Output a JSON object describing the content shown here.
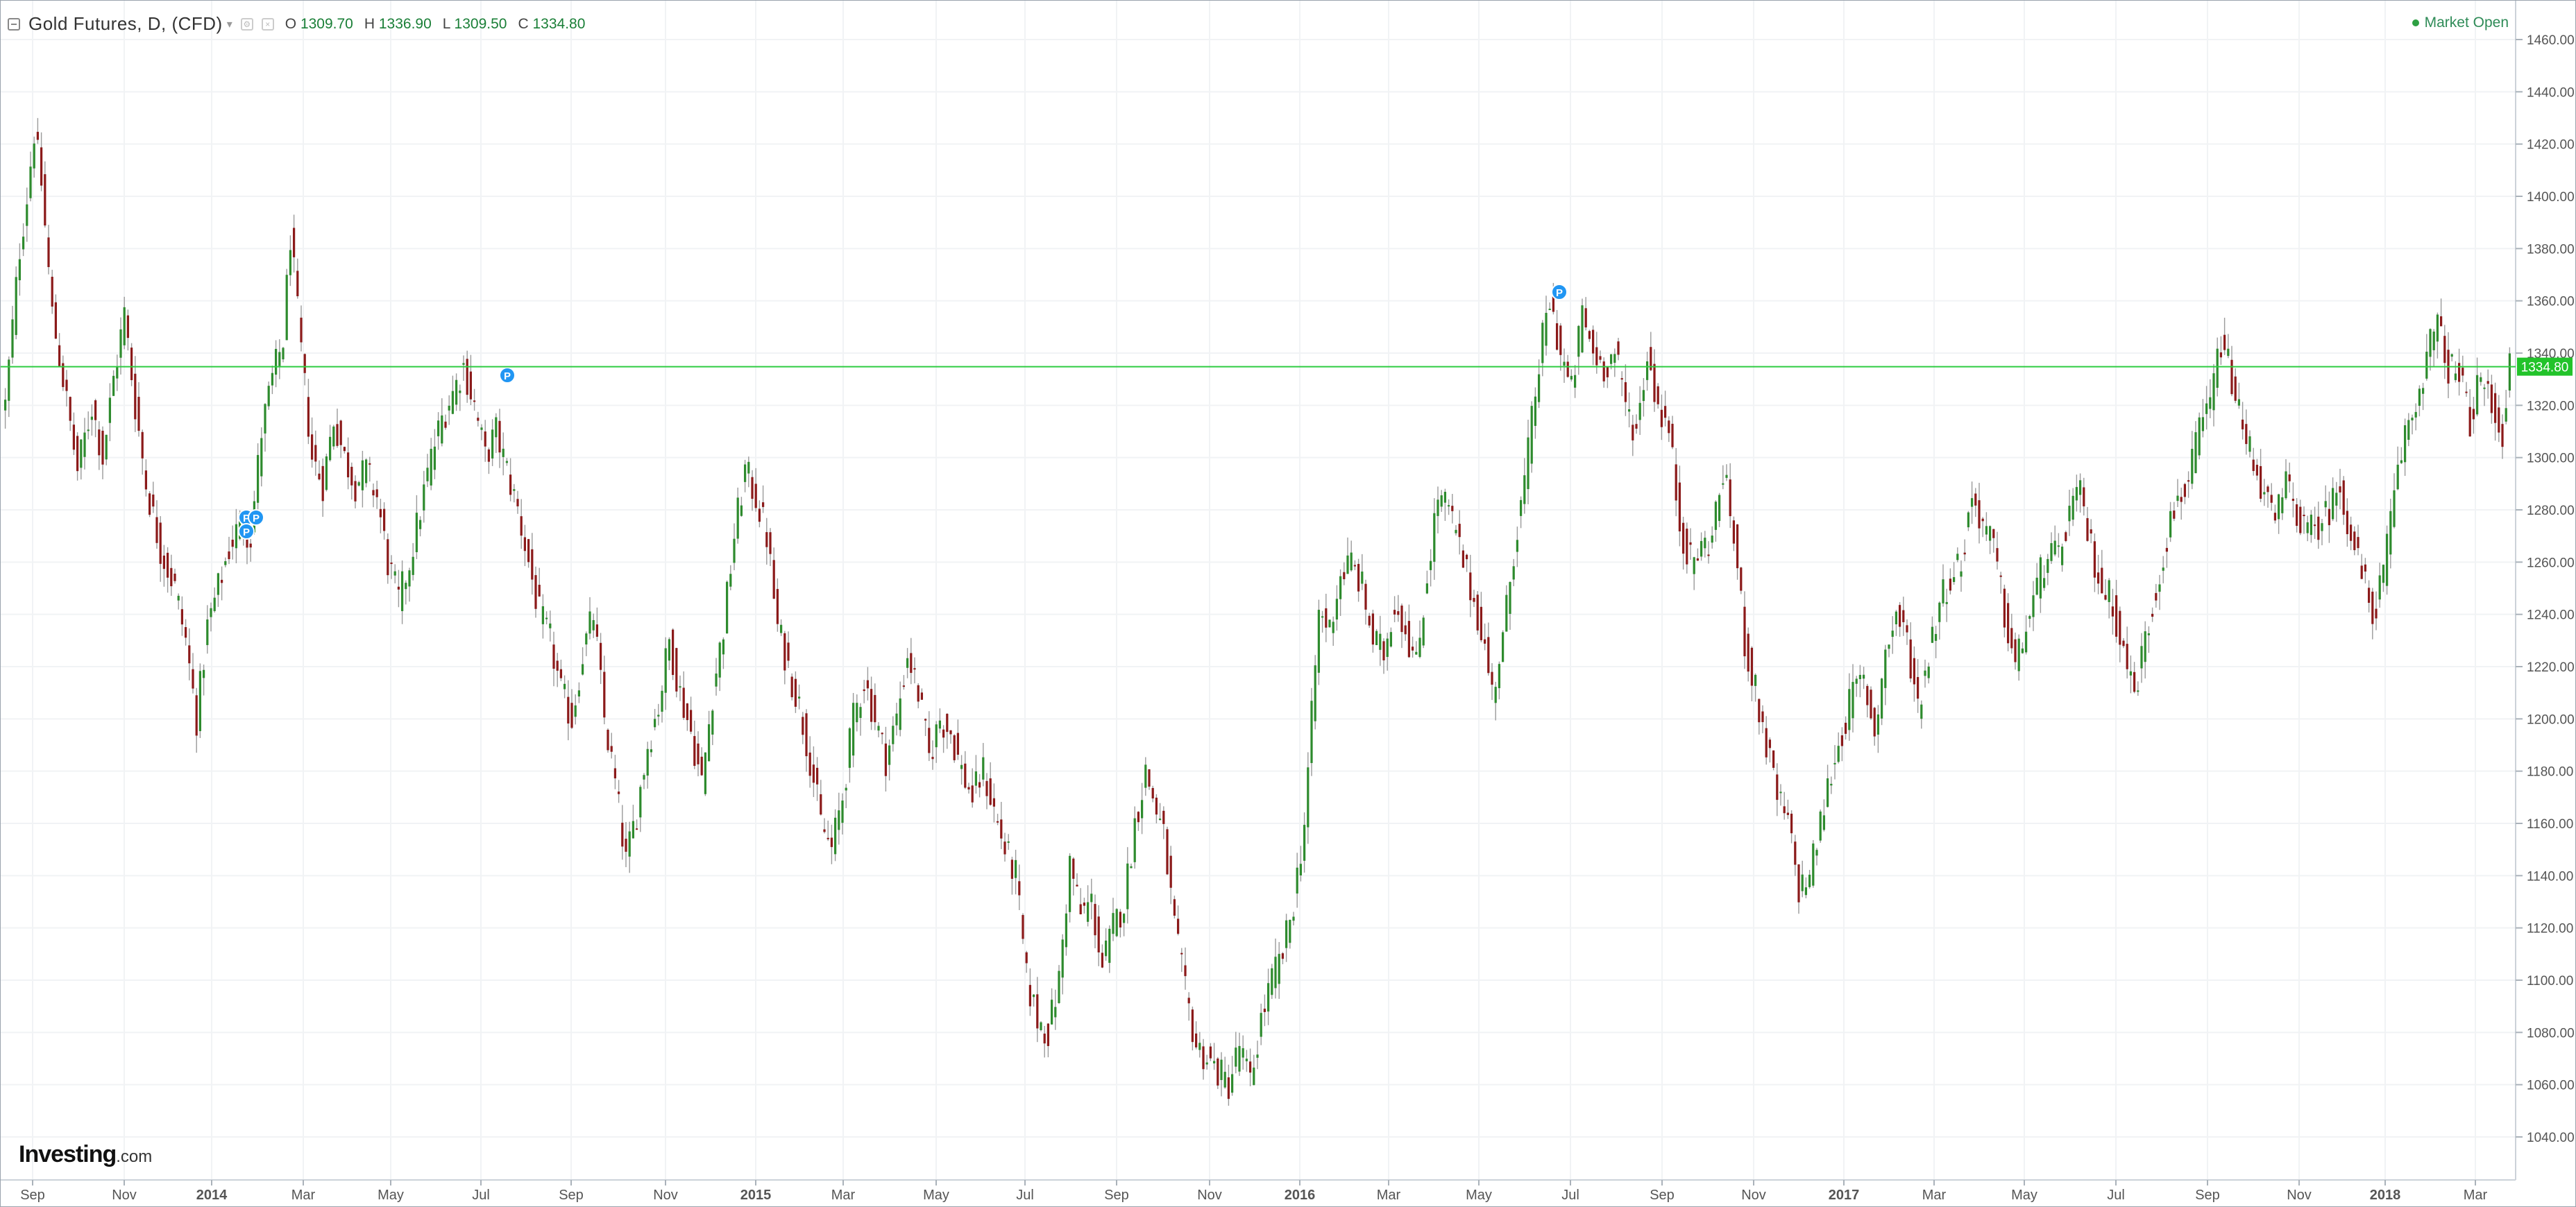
{
  "legend": {
    "symbol": "Gold Futures, D, (CFD)",
    "o_label": "O",
    "o": "1309.70",
    "h_label": "H",
    "h": "1336.90",
    "l_label": "L",
    "l": "1309.50",
    "c_label": "C",
    "c": "1334.80"
  },
  "status": {
    "market": "Market Open"
  },
  "brand": {
    "name": "Investing",
    "suffix": ".com"
  },
  "price_label": "1334.80",
  "chart_data": {
    "type": "candlestick",
    "y_ticks": [
      "1040.00",
      "1060.00",
      "1080.00",
      "1100.00",
      "1120.00",
      "1140.00",
      "1160.00",
      "1180.00",
      "1200.00",
      "1220.00",
      "1240.00",
      "1260.00",
      "1280.00",
      "1300.00",
      "1320.00",
      "1340.00",
      "1360.00",
      "1380.00",
      "1400.00",
      "1420.00",
      "1440.00",
      "1460.00"
    ],
    "x_ticks": [
      "Sep",
      "Nov",
      "2014",
      "Mar",
      "May",
      "Jul",
      "Sep",
      "Nov",
      "2015",
      "Mar",
      "May",
      "Jul",
      "Sep",
      "Nov",
      "2016",
      "Mar",
      "May",
      "Jul",
      "Sep",
      "Nov",
      "2017",
      "Mar",
      "May",
      "Jul",
      "Sep",
      "Nov",
      "2018",
      "Mar"
    ],
    "ylim": [
      1030,
      1470
    ],
    "current_price": 1334.8,
    "up_color": "#2e8b2e",
    "down_color": "#8b1a1a",
    "price_line_color": "#2ecc40",
    "anchors": [
      [
        0,
        1320
      ],
      [
        4,
        1380
      ],
      [
        6,
        1400
      ],
      [
        8,
        1425
      ],
      [
        10,
        1405
      ],
      [
        13,
        1355
      ],
      [
        16,
        1330
      ],
      [
        20,
        1295
      ],
      [
        24,
        1320
      ],
      [
        27,
        1300
      ],
      [
        30,
        1330
      ],
      [
        33,
        1355
      ],
      [
        36,
        1320
      ],
      [
        39,
        1290
      ],
      [
        43,
        1265
      ],
      [
        47,
        1250
      ],
      [
        50,
        1230
      ],
      [
        53,
        1200
      ],
      [
        56,
        1235
      ],
      [
        59,
        1250
      ],
      [
        62,
        1265
      ],
      [
        65,
        1275
      ],
      [
        68,
        1270
      ],
      [
        71,
        1310
      ],
      [
        74,
        1330
      ],
      [
        77,
        1345
      ],
      [
        79,
        1385
      ],
      [
        82,
        1340
      ],
      [
        85,
        1300
      ],
      [
        88,
        1290
      ],
      [
        91,
        1315
      ],
      [
        94,
        1300
      ],
      [
        97,
        1290
      ],
      [
        100,
        1295
      ],
      [
        103,
        1285
      ],
      [
        106,
        1260
      ],
      [
        109,
        1245
      ],
      [
        112,
        1260
      ],
      [
        115,
        1280
      ],
      [
        118,
        1300
      ],
      [
        121,
        1315
      ],
      [
        124,
        1325
      ],
      [
        127,
        1335
      ],
      [
        130,
        1320
      ],
      [
        133,
        1300
      ],
      [
        136,
        1310
      ],
      [
        139,
        1295
      ],
      [
        142,
        1280
      ],
      [
        145,
        1260
      ],
      [
        148,
        1240
      ],
      [
        151,
        1230
      ],
      [
        154,
        1210
      ],
      [
        157,
        1200
      ],
      [
        160,
        1225
      ],
      [
        163,
        1240
      ],
      [
        166,
        1200
      ],
      [
        169,
        1175
      ],
      [
        172,
        1145
      ],
      [
        175,
        1165
      ],
      [
        178,
        1190
      ],
      [
        181,
        1205
      ],
      [
        184,
        1230
      ],
      [
        187,
        1210
      ],
      [
        190,
        1195
      ],
      [
        193,
        1175
      ],
      [
        196,
        1210
      ],
      [
        199,
        1235
      ],
      [
        202,
        1270
      ],
      [
        205,
        1295
      ],
      [
        208,
        1285
      ],
      [
        211,
        1270
      ],
      [
        214,
        1235
      ],
      [
        217,
        1220
      ],
      [
        220,
        1205
      ],
      [
        223,
        1185
      ],
      [
        226,
        1160
      ],
      [
        229,
        1150
      ],
      [
        232,
        1170
      ],
      [
        235,
        1200
      ],
      [
        238,
        1215
      ],
      [
        241,
        1200
      ],
      [
        244,
        1185
      ],
      [
        247,
        1200
      ],
      [
        250,
        1225
      ],
      [
        253,
        1210
      ],
      [
        256,
        1185
      ],
      [
        259,
        1200
      ],
      [
        262,
        1195
      ],
      [
        265,
        1180
      ],
      [
        268,
        1170
      ],
      [
        271,
        1180
      ],
      [
        274,
        1165
      ],
      [
        277,
        1150
      ],
      [
        280,
        1140
      ],
      [
        283,
        1100
      ],
      [
        286,
        1085
      ],
      [
        289,
        1080
      ],
      [
        292,
        1100
      ],
      [
        295,
        1145
      ],
      [
        298,
        1125
      ],
      [
        301,
        1130
      ],
      [
        304,
        1105
      ],
      [
        307,
        1120
      ],
      [
        310,
        1130
      ],
      [
        313,
        1160
      ],
      [
        316,
        1180
      ],
      [
        318,
        1170
      ],
      [
        321,
        1155
      ],
      [
        324,
        1120
      ],
      [
        327,
        1095
      ],
      [
        330,
        1075
      ],
      [
        333,
        1070
      ],
      [
        336,
        1065
      ],
      [
        339,
        1060
      ],
      [
        342,
        1075
      ],
      [
        345,
        1060
      ],
      [
        348,
        1085
      ],
      [
        351,
        1100
      ],
      [
        354,
        1110
      ],
      [
        357,
        1130
      ],
      [
        360,
        1160
      ],
      [
        362,
        1200
      ],
      [
        364,
        1240
      ],
      [
        367,
        1235
      ],
      [
        370,
        1255
      ],
      [
        373,
        1260
      ],
      [
        376,
        1250
      ],
      [
        379,
        1230
      ],
      [
        382,
        1225
      ],
      [
        385,
        1245
      ],
      [
        388,
        1235
      ],
      [
        391,
        1220
      ],
      [
        394,
        1255
      ],
      [
        397,
        1285
      ],
      [
        400,
        1280
      ],
      [
        403,
        1265
      ],
      [
        406,
        1250
      ],
      [
        409,
        1235
      ],
      [
        412,
        1210
      ],
      [
        415,
        1230
      ],
      [
        418,
        1265
      ],
      [
        421,
        1290
      ],
      [
        424,
        1325
      ],
      [
        426,
        1345
      ],
      [
        428,
        1360
      ],
      [
        431,
        1340
      ],
      [
        434,
        1325
      ],
      [
        437,
        1355
      ],
      [
        440,
        1340
      ],
      [
        443,
        1335
      ],
      [
        446,
        1340
      ],
      [
        449,
        1320
      ],
      [
        452,
        1310
      ],
      [
        455,
        1340
      ],
      [
        458,
        1320
      ],
      [
        461,
        1310
      ],
      [
        464,
        1275
      ],
      [
        467,
        1260
      ],
      [
        470,
        1265
      ],
      [
        473,
        1270
      ],
      [
        476,
        1295
      ],
      [
        479,
        1270
      ],
      [
        482,
        1230
      ],
      [
        485,
        1210
      ],
      [
        488,
        1190
      ],
      [
        491,
        1170
      ],
      [
        494,
        1160
      ],
      [
        497,
        1135
      ],
      [
        500,
        1140
      ],
      [
        503,
        1160
      ],
      [
        506,
        1180
      ],
      [
        509,
        1195
      ],
      [
        512,
        1210
      ],
      [
        515,
        1215
      ],
      [
        518,
        1195
      ],
      [
        521,
        1225
      ],
      [
        524,
        1240
      ],
      [
        527,
        1230
      ],
      [
        530,
        1205
      ],
      [
        533,
        1225
      ],
      [
        536,
        1245
      ],
      [
        539,
        1255
      ],
      [
        542,
        1260
      ],
      [
        545,
        1285
      ],
      [
        548,
        1275
      ],
      [
        551,
        1265
      ],
      [
        554,
        1240
      ],
      [
        557,
        1220
      ],
      [
        560,
        1235
      ],
      [
        563,
        1250
      ],
      [
        566,
        1265
      ],
      [
        569,
        1260
      ],
      [
        572,
        1280
      ],
      [
        575,
        1285
      ],
      [
        578,
        1265
      ],
      [
        581,
        1250
      ],
      [
        584,
        1245
      ],
      [
        587,
        1225
      ],
      [
        590,
        1210
      ],
      [
        593,
        1230
      ],
      [
        596,
        1250
      ],
      [
        599,
        1270
      ],
      [
        602,
        1285
      ],
      [
        605,
        1290
      ],
      [
        608,
        1310
      ],
      [
        611,
        1320
      ],
      [
        614,
        1345
      ],
      [
        617,
        1330
      ],
      [
        620,
        1310
      ],
      [
        623,
        1300
      ],
      [
        626,
        1285
      ],
      [
        629,
        1275
      ],
      [
        632,
        1290
      ],
      [
        635,
        1280
      ],
      [
        638,
        1270
      ],
      [
        641,
        1275
      ],
      [
        644,
        1280
      ],
      [
        647,
        1290
      ],
      [
        650,
        1270
      ],
      [
        653,
        1255
      ],
      [
        656,
        1240
      ],
      [
        659,
        1255
      ],
      [
        662,
        1285
      ],
      [
        665,
        1310
      ],
      [
        668,
        1320
      ],
      [
        671,
        1340
      ],
      [
        674,
        1350
      ],
      [
        677,
        1335
      ],
      [
        680,
        1330
      ],
      [
        683,
        1315
      ],
      [
        686,
        1330
      ],
      [
        689,
        1320
      ],
      [
        692,
        1310
      ],
      [
        694,
        1334.8
      ]
    ]
  }
}
